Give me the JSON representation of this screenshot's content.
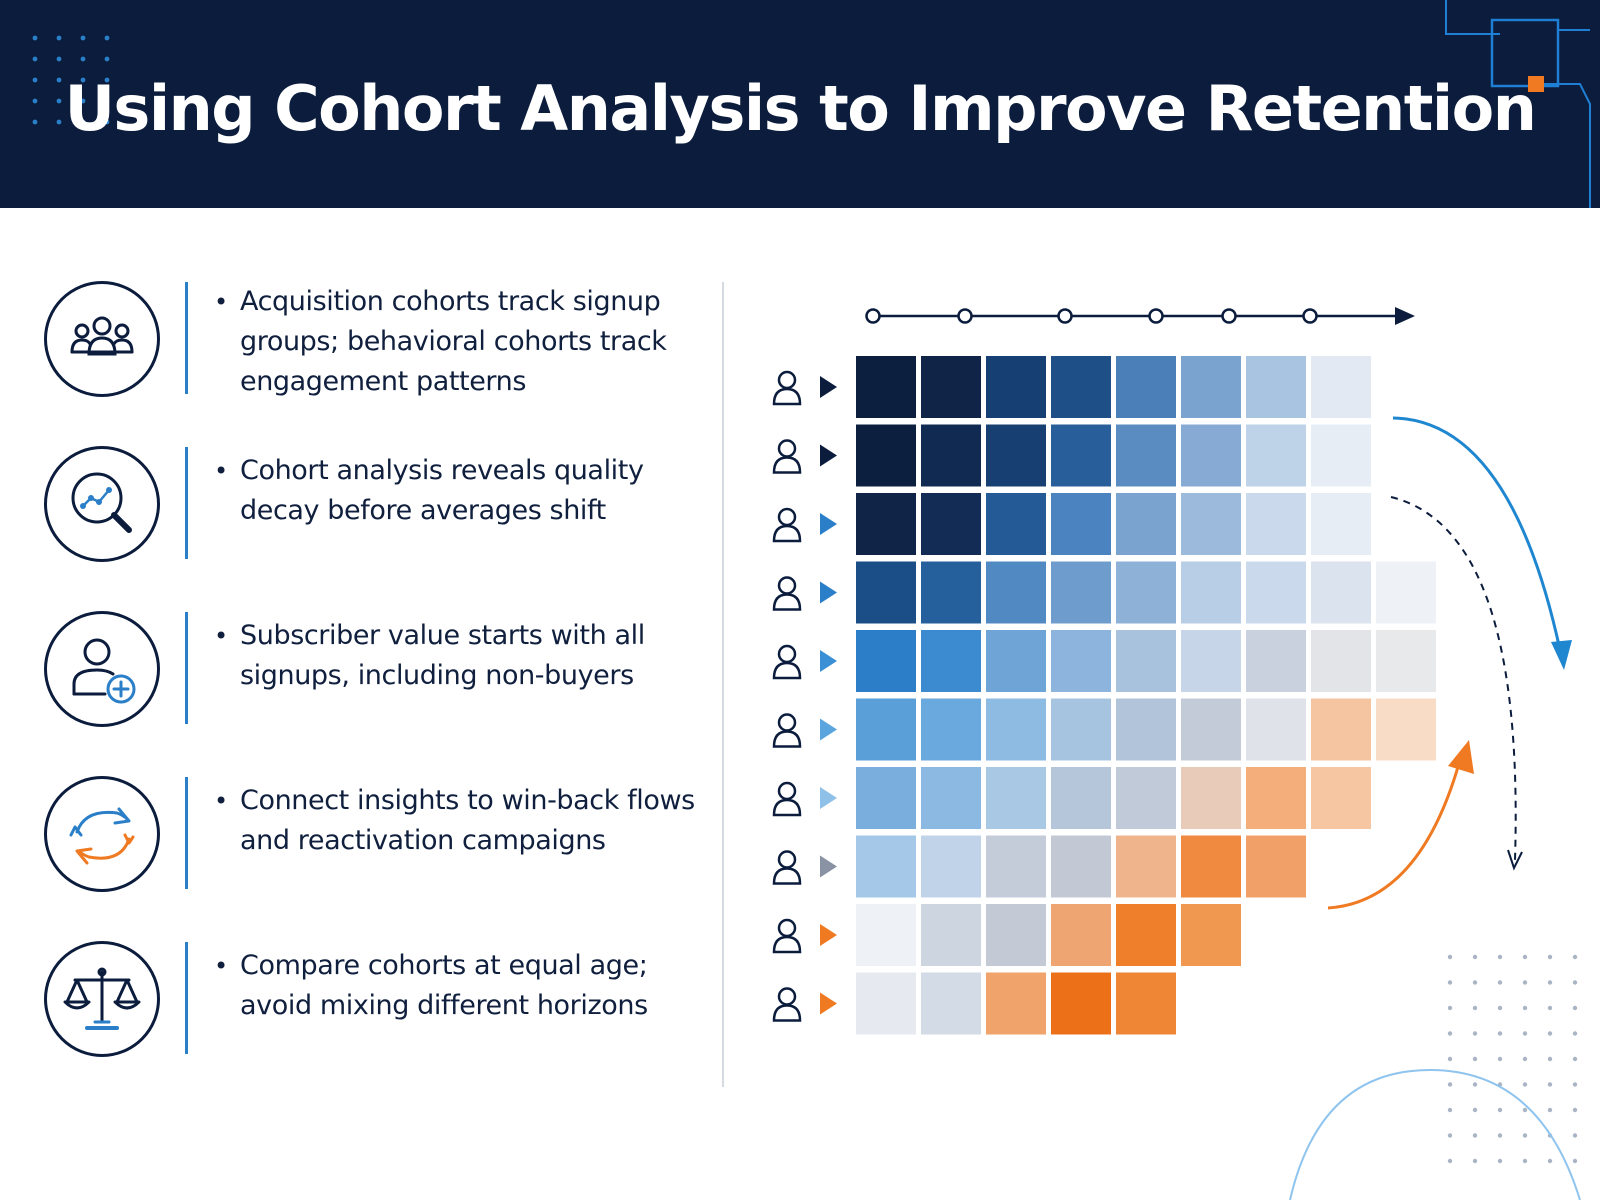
{
  "header": {
    "title": "Using Cohort Analysis to Improve Retention"
  },
  "features": [
    {
      "icon": "people-group-icon",
      "text": "Acquisition cohorts track signup groups; behavioral cohorts track engagement patterns"
    },
    {
      "icon": "magnifier-trend-icon",
      "text": "Cohort analysis reveals quality decay before averages shift"
    },
    {
      "icon": "add-user-icon",
      "text": "Subscriber value starts with all signups, including non-buyers"
    },
    {
      "icon": "refresh-cycle-icon",
      "text": "Connect insights to win-back flows and reactivation campaigns"
    },
    {
      "icon": "balance-scale-icon",
      "text": "Compare cohorts at equal age; avoid mixing different horizons"
    }
  ],
  "colors": {
    "navy": "#0b1c3d",
    "accent_blue": "#2a7fc8",
    "accent_orange": "#ef7a22",
    "grey_line": "#d5d9e0"
  },
  "heatmap": {
    "rows": [
      {
        "arrow": "#0b1c3d",
        "cells": [
          "#0d1f3f",
          "#0f2447",
          "#163f73",
          "#1f4f87",
          "#4a7fb8",
          "#7aa4cf",
          "#a9c4e0",
          "#e2e9f2"
        ]
      },
      {
        "arrow": "#0b1c3d",
        "cells": [
          "#0d1f3f",
          "#112a52",
          "#173f72",
          "#285e9a",
          "#5a8cc2",
          "#86aad3",
          "#bfd3e8",
          "#e7edf4"
        ]
      },
      {
        "arrow": "#2a7fc8",
        "cells": [
          "#0f2447",
          "#132c55",
          "#245a96",
          "#4a83bf",
          "#7aa3cf",
          "#9cbadb",
          "#cad9eb",
          "#e7edf4"
        ]
      },
      {
        "arrow": "#2a7fc8",
        "cells": [
          "#1b4e87",
          "#255f9c",
          "#5189c3",
          "#6e9dcd",
          "#8eb1d8",
          "#b8cde6",
          "#cad9eb",
          "#dbe3ee",
          "#eef2f7"
        ]
      },
      {
        "arrow": "#3b8fd4",
        "cells": [
          "#2c7ec8",
          "#3c8bd0",
          "#6ea4d6",
          "#8cb4dc",
          "#a8c1dc",
          "#c6d5e7",
          "#c9d1df",
          "#e2e4e8",
          "#e8e9eb"
        ]
      },
      {
        "arrow": "#5aa5de",
        "cells": [
          "#5a9fd8",
          "#69a9dd",
          "#8ebbe2",
          "#a6c4e0",
          "#b2c4da",
          "#c4cbd8",
          "#dfe2e8",
          "#f5c4a0",
          "#f8dcc6"
        ]
      },
      {
        "arrow": "#8ec0e8",
        "cells": [
          "#7aaedc",
          "#8bb9e1",
          "#a9c8e4",
          "#b5c6da",
          "#c1cad8",
          "#e8cbb8",
          "#f3ae7c",
          "#f6c5a1"
        ]
      },
      {
        "arrow": "#8a93a3",
        "cells": [
          "#a6c8e8",
          "#c1d3e8",
          "#c4ccd9",
          "#c3c9d4",
          "#f0b48c",
          "#ef8a40",
          "#f1a168"
        ]
      },
      {
        "arrow": "#ef7a22",
        "cells": [
          "#eef1f5",
          "#cdd5e1",
          "#c3cad5",
          "#efa571",
          "#ef7f2a",
          "#f0984f"
        ]
      },
      {
        "arrow": "#ef7a22",
        "cells": [
          "#e6eaf0",
          "#d3dbe6",
          "#f0a36a",
          "#ec7018",
          "#ef8636"
        ]
      }
    ]
  }
}
